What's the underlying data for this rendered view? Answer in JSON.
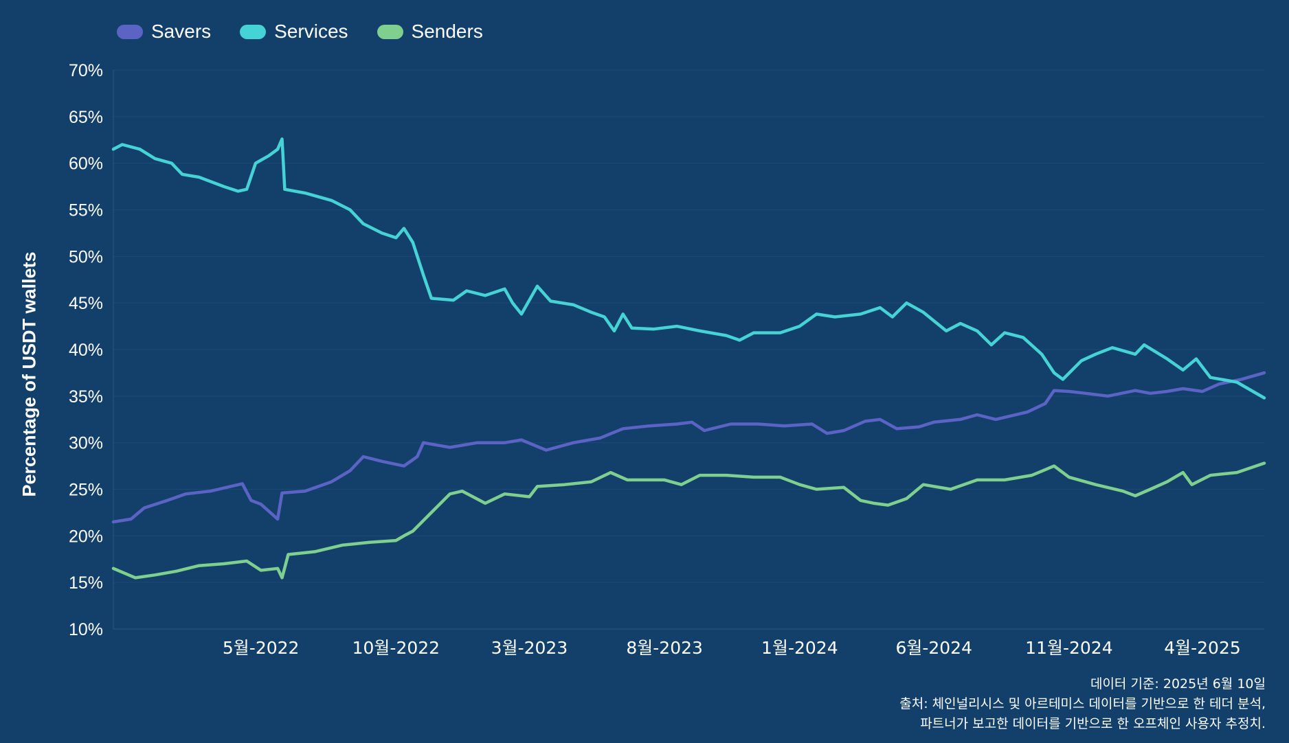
{
  "colors": {
    "background": "#12406b",
    "grid": "#1d4a75",
    "axis": "#2a5580",
    "savers": "#5b63c4",
    "services": "#45d3d6",
    "senders": "#7fcf8f"
  },
  "chart_data": {
    "type": "line",
    "ylabel": "Percentage of USDT wallets",
    "xlabel": "",
    "ylim": [
      10,
      70
    ],
    "y_ticks": [
      "10%",
      "15%",
      "20%",
      "25%",
      "30%",
      "35%",
      "40%",
      "45%",
      "50%",
      "55%",
      "60%",
      "65%",
      "70%"
    ],
    "y_tick_values": [
      10,
      15,
      20,
      25,
      30,
      35,
      40,
      45,
      50,
      55,
      60,
      65,
      70
    ],
    "x_ticks": [
      "5월-2022",
      "10월-2022",
      "3월-2023",
      "8월-2023",
      "1월-2024",
      "6월-2024",
      "11월-2024",
      "4월-2025"
    ],
    "x_tick_dates": [
      "2022-05-01",
      "2022-10-01",
      "2023-03-01",
      "2023-08-01",
      "2024-01-01",
      "2024-06-01",
      "2024-11-01",
      "2025-04-01"
    ],
    "xlim": [
      "2021-11-15",
      "2025-06-10"
    ],
    "grid": "horizontal",
    "legend": "top-left",
    "series": [
      {
        "name": "Savers",
        "color": "#5b63c4",
        "points": [
          [
            "2021-11-15",
            21.5
          ],
          [
            "2021-12-05",
            21.8
          ],
          [
            "2021-12-20",
            23.0
          ],
          [
            "2022-01-15",
            23.8
          ],
          [
            "2022-02-05",
            24.5
          ],
          [
            "2022-03-05",
            24.8
          ],
          [
            "2022-04-10",
            25.6
          ],
          [
            "2022-04-20",
            23.8
          ],
          [
            "2022-05-01",
            23.4
          ],
          [
            "2022-05-20",
            21.8
          ],
          [
            "2022-05-25",
            24.6
          ],
          [
            "2022-06-20",
            24.8
          ],
          [
            "2022-07-20",
            25.8
          ],
          [
            "2022-08-10",
            27.0
          ],
          [
            "2022-08-25",
            28.5
          ],
          [
            "2022-09-15",
            28.0
          ],
          [
            "2022-10-10",
            27.5
          ],
          [
            "2022-10-25",
            28.5
          ],
          [
            "2022-11-01",
            30.0
          ],
          [
            "2022-12-01",
            29.5
          ],
          [
            "2023-01-01",
            30.0
          ],
          [
            "2023-02-01",
            30.0
          ],
          [
            "2023-02-20",
            30.3
          ],
          [
            "2023-03-20",
            29.2
          ],
          [
            "2023-04-20",
            30.0
          ],
          [
            "2023-05-20",
            30.5
          ],
          [
            "2023-06-15",
            31.5
          ],
          [
            "2023-07-15",
            31.8
          ],
          [
            "2023-08-15",
            32.0
          ],
          [
            "2023-09-01",
            32.2
          ],
          [
            "2023-09-15",
            31.3
          ],
          [
            "2023-10-15",
            32.0
          ],
          [
            "2023-11-15",
            32.0
          ],
          [
            "2023-12-15",
            31.8
          ],
          [
            "2024-01-15",
            32.0
          ],
          [
            "2024-02-01",
            31.0
          ],
          [
            "2024-02-20",
            31.3
          ],
          [
            "2024-03-15",
            32.3
          ],
          [
            "2024-04-01",
            32.5
          ],
          [
            "2024-04-20",
            31.5
          ],
          [
            "2024-05-15",
            31.7
          ],
          [
            "2024-06-01",
            32.2
          ],
          [
            "2024-07-01",
            32.5
          ],
          [
            "2024-07-20",
            33.0
          ],
          [
            "2024-08-10",
            32.5
          ],
          [
            "2024-09-15",
            33.3
          ],
          [
            "2024-10-05",
            34.2
          ],
          [
            "2024-10-15",
            35.6
          ],
          [
            "2024-11-01",
            35.5
          ],
          [
            "2024-11-20",
            35.3
          ],
          [
            "2024-12-15",
            35.0
          ],
          [
            "2025-01-15",
            35.6
          ],
          [
            "2025-02-01",
            35.3
          ],
          [
            "2025-02-20",
            35.5
          ],
          [
            "2025-03-10",
            35.8
          ],
          [
            "2025-04-01",
            35.5
          ],
          [
            "2025-04-20",
            36.3
          ],
          [
            "2025-05-15",
            36.8
          ],
          [
            "2025-06-10",
            37.5
          ]
        ]
      },
      {
        "name": "Services",
        "color": "#45d3d6",
        "points": [
          [
            "2021-11-15",
            61.5
          ],
          [
            "2021-11-25",
            62.0
          ],
          [
            "2021-12-15",
            61.5
          ],
          [
            "2022-01-01",
            60.5
          ],
          [
            "2022-01-20",
            60.0
          ],
          [
            "2022-02-01",
            58.8
          ],
          [
            "2022-02-20",
            58.5
          ],
          [
            "2022-03-20",
            57.5
          ],
          [
            "2022-04-05",
            57.0
          ],
          [
            "2022-04-15",
            57.2
          ],
          [
            "2022-04-25",
            60.0
          ],
          [
            "2022-05-10",
            60.8
          ],
          [
            "2022-05-20",
            61.5
          ],
          [
            "2022-05-25",
            62.6
          ],
          [
            "2022-05-28",
            57.2
          ],
          [
            "2022-06-20",
            56.8
          ],
          [
            "2022-07-20",
            56.0
          ],
          [
            "2022-08-10",
            55.0
          ],
          [
            "2022-08-25",
            53.5
          ],
          [
            "2022-09-15",
            52.5
          ],
          [
            "2022-10-01",
            52.0
          ],
          [
            "2022-10-10",
            53.0
          ],
          [
            "2022-10-20",
            51.5
          ],
          [
            "2022-11-01",
            48.0
          ],
          [
            "2022-11-10",
            45.5
          ],
          [
            "2022-12-05",
            45.3
          ],
          [
            "2022-12-20",
            46.3
          ],
          [
            "2023-01-10",
            45.8
          ],
          [
            "2023-02-01",
            46.5
          ],
          [
            "2023-02-10",
            45.0
          ],
          [
            "2023-02-20",
            43.8
          ],
          [
            "2023-03-10",
            46.8
          ],
          [
            "2023-03-25",
            45.2
          ],
          [
            "2023-04-20",
            44.8
          ],
          [
            "2023-05-10",
            44.0
          ],
          [
            "2023-05-25",
            43.5
          ],
          [
            "2023-06-05",
            42.0
          ],
          [
            "2023-06-15",
            43.8
          ],
          [
            "2023-06-25",
            42.3
          ],
          [
            "2023-07-20",
            42.2
          ],
          [
            "2023-08-15",
            42.5
          ],
          [
            "2023-09-10",
            42.0
          ],
          [
            "2023-10-10",
            41.5
          ],
          [
            "2023-10-25",
            41.0
          ],
          [
            "2023-11-10",
            41.8
          ],
          [
            "2023-12-10",
            41.8
          ],
          [
            "2024-01-01",
            42.5
          ],
          [
            "2024-01-20",
            43.8
          ],
          [
            "2024-02-10",
            43.5
          ],
          [
            "2024-03-10",
            43.8
          ],
          [
            "2024-04-01",
            44.5
          ],
          [
            "2024-04-15",
            43.5
          ],
          [
            "2024-05-01",
            45.0
          ],
          [
            "2024-05-20",
            44.0
          ],
          [
            "2024-06-15",
            42.0
          ],
          [
            "2024-07-01",
            42.8
          ],
          [
            "2024-07-20",
            42.0
          ],
          [
            "2024-08-05",
            40.5
          ],
          [
            "2024-08-20",
            41.8
          ],
          [
            "2024-09-10",
            41.3
          ],
          [
            "2024-10-01",
            39.5
          ],
          [
            "2024-10-15",
            37.5
          ],
          [
            "2024-10-25",
            36.8
          ],
          [
            "2024-11-15",
            38.8
          ],
          [
            "2024-12-01",
            39.5
          ],
          [
            "2024-12-20",
            40.2
          ],
          [
            "2025-01-15",
            39.5
          ],
          [
            "2025-01-25",
            40.5
          ],
          [
            "2025-02-20",
            39.0
          ],
          [
            "2025-03-10",
            37.8
          ],
          [
            "2025-03-25",
            39.0
          ],
          [
            "2025-04-10",
            37.0
          ],
          [
            "2025-05-10",
            36.5
          ],
          [
            "2025-06-10",
            34.8
          ]
        ]
      },
      {
        "name": "Senders",
        "color": "#7fcf8f",
        "points": [
          [
            "2021-11-15",
            16.5
          ],
          [
            "2021-12-10",
            15.5
          ],
          [
            "2022-01-01",
            15.8
          ],
          [
            "2022-01-25",
            16.2
          ],
          [
            "2022-02-20",
            16.8
          ],
          [
            "2022-03-20",
            17.0
          ],
          [
            "2022-04-15",
            17.3
          ],
          [
            "2022-05-01",
            16.3
          ],
          [
            "2022-05-20",
            16.5
          ],
          [
            "2022-05-25",
            15.5
          ],
          [
            "2022-06-01",
            18.0
          ],
          [
            "2022-07-01",
            18.3
          ],
          [
            "2022-08-01",
            19.0
          ],
          [
            "2022-09-01",
            19.3
          ],
          [
            "2022-10-01",
            19.5
          ],
          [
            "2022-10-10",
            20.0
          ],
          [
            "2022-10-20",
            20.5
          ],
          [
            "2022-11-10",
            22.5
          ],
          [
            "2022-12-01",
            24.5
          ],
          [
            "2022-12-15",
            24.8
          ],
          [
            "2023-01-10",
            23.5
          ],
          [
            "2023-02-01",
            24.5
          ],
          [
            "2023-03-01",
            24.2
          ],
          [
            "2023-03-10",
            25.3
          ],
          [
            "2023-04-10",
            25.5
          ],
          [
            "2023-05-10",
            25.8
          ],
          [
            "2023-06-01",
            26.8
          ],
          [
            "2023-06-20",
            26.0
          ],
          [
            "2023-08-01",
            26.0
          ],
          [
            "2023-08-20",
            25.5
          ],
          [
            "2023-09-10",
            26.5
          ],
          [
            "2023-10-10",
            26.5
          ],
          [
            "2023-11-10",
            26.3
          ],
          [
            "2023-12-10",
            26.3
          ],
          [
            "2024-01-01",
            25.5
          ],
          [
            "2024-01-20",
            25.0
          ],
          [
            "2024-02-20",
            25.2
          ],
          [
            "2024-03-10",
            23.8
          ],
          [
            "2024-03-25",
            23.5
          ],
          [
            "2024-04-10",
            23.3
          ],
          [
            "2024-05-01",
            24.0
          ],
          [
            "2024-05-20",
            25.5
          ],
          [
            "2024-06-20",
            25.0
          ],
          [
            "2024-07-20",
            26.0
          ],
          [
            "2024-08-20",
            26.0
          ],
          [
            "2024-09-20",
            26.5
          ],
          [
            "2024-10-15",
            27.5
          ],
          [
            "2024-11-01",
            26.3
          ],
          [
            "2024-12-01",
            25.5
          ],
          [
            "2025-01-01",
            24.8
          ],
          [
            "2025-01-15",
            24.3
          ],
          [
            "2025-02-01",
            25.0
          ],
          [
            "2025-02-20",
            25.8
          ],
          [
            "2025-03-10",
            26.8
          ],
          [
            "2025-03-20",
            25.5
          ],
          [
            "2025-04-10",
            26.5
          ],
          [
            "2025-05-10",
            26.8
          ],
          [
            "2025-06-10",
            27.8
          ]
        ]
      }
    ]
  },
  "notes": {
    "line1": "데이터 기준: 2025년 6월 10일",
    "line2": "출처: 체인널리시스 및 아르테미스 데이터를 기반으로 한 테더 분석,",
    "line3": "파트너가 보고한 데이터를 기반으로 한 오프체인 사용자 추정치."
  }
}
